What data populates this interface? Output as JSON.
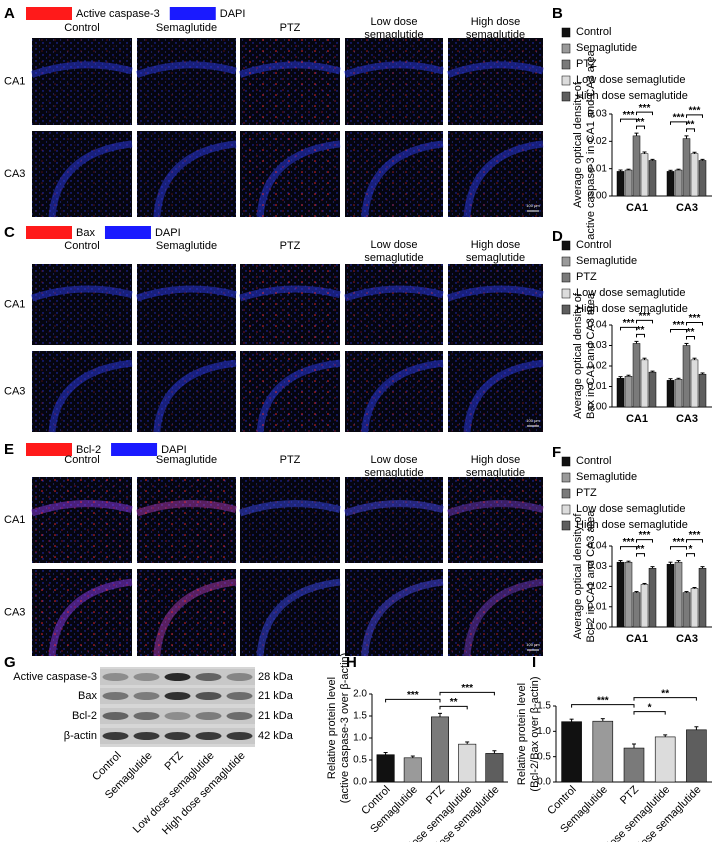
{
  "image_panels": [
    {
      "letter": "A",
      "legend": [
        "Active caspase-3",
        "DAPI"
      ],
      "columns": [
        [
          "Control"
        ],
        [
          "Semaglutide"
        ],
        [
          "PTZ"
        ],
        [
          "Low dose",
          "semaglutide"
        ],
        [
          "High dose",
          "semaglutide"
        ]
      ],
      "rows": [
        "CA1",
        "CA3"
      ],
      "scale_bar": "100 μm"
    },
    {
      "letter": "C",
      "legend": [
        "Bax",
        "DAPI"
      ],
      "columns": [
        [
          "Control"
        ],
        [
          "Semaglutide"
        ],
        [
          "PTZ"
        ],
        [
          "Low dose",
          "semaglutide"
        ],
        [
          "High dose",
          "semaglutide"
        ]
      ],
      "rows": [
        "CA1",
        "CA3"
      ],
      "scale_bar": "100 μm"
    },
    {
      "letter": "E",
      "legend": [
        "Bcl-2",
        "DAPI"
      ],
      "columns": [
        [
          "Control"
        ],
        [
          "Semaglutide"
        ],
        [
          "PTZ"
        ],
        [
          "Low dose",
          "semaglutide"
        ],
        [
          "High dose",
          "semaglutide"
        ]
      ],
      "rows": [
        "CA1",
        "CA3"
      ],
      "scale_bar": "100 μm"
    }
  ],
  "chart_data": [
    {
      "type": "grouped_bar",
      "letter": "B",
      "ylabel": [
        "Average optical density of",
        "active caspase-3 in CA1 and CA3 area"
      ],
      "categories": [
        "CA1",
        "CA3"
      ],
      "series": [
        {
          "name": "Control",
          "color": "#111111",
          "values": [
            0.009,
            0.009
          ],
          "errors": [
            0.0005,
            0.0004
          ]
        },
        {
          "name": "Semaglutide",
          "color": "#9a9a9a",
          "values": [
            0.0095,
            0.0095
          ],
          "errors": [
            0.0003,
            0.0003
          ]
        },
        {
          "name": "PTZ",
          "color": "#7a7a7a",
          "values": [
            0.022,
            0.021
          ],
          "errors": [
            0.001,
            0.001
          ]
        },
        {
          "name": "Low dose semaglutide",
          "color": "#dcdcdc",
          "values": [
            0.0155,
            0.0155
          ],
          "errors": [
            0.0006,
            0.0005
          ]
        },
        {
          "name": "High dose semaglutide",
          "color": "#5e5e5e",
          "values": [
            0.013,
            0.013
          ],
          "errors": [
            0.0004,
            0.0004
          ]
        }
      ],
      "ylim": [
        0,
        0.03
      ],
      "yticks": [
        {
          "value": 0,
          "label": "0.00"
        },
        0.01,
        0.02,
        0.03
      ],
      "significance": [
        [
          "***",
          "**",
          "***"
        ],
        [
          "***",
          "**",
          "***"
        ]
      ]
    },
    {
      "type": "grouped_bar",
      "letter": "D",
      "ylabel": [
        "Average optical density of",
        "Bax in CA1 and CA3 area"
      ],
      "categories": [
        "CA1",
        "CA3"
      ],
      "series": [
        {
          "name": "Control",
          "color": "#111111",
          "values": [
            0.014,
            0.013
          ],
          "errors": [
            0.0008,
            0.0008
          ]
        },
        {
          "name": "Semaglutide",
          "color": "#9a9a9a",
          "values": [
            0.015,
            0.0135
          ],
          "errors": [
            0.0005,
            0.0005
          ]
        },
        {
          "name": "PTZ",
          "color": "#7a7a7a",
          "values": [
            0.031,
            0.03
          ],
          "errors": [
            0.001,
            0.001
          ]
        },
        {
          "name": "Low dose semaglutide",
          "color": "#dcdcdc",
          "values": [
            0.023,
            0.023
          ],
          "errors": [
            0.0008,
            0.0008
          ]
        },
        {
          "name": "High dose semaglutide",
          "color": "#5e5e5e",
          "values": [
            0.017,
            0.016
          ],
          "errors": [
            0.0005,
            0.0006
          ]
        }
      ],
      "ylim": [
        0,
        0.04
      ],
      "yticks": [
        {
          "value": 0,
          "label": "0.00"
        },
        0.01,
        0.02,
        0.03,
        0.04
      ],
      "significance": [
        [
          "***",
          "**",
          "***"
        ],
        [
          "***",
          "**",
          "***"
        ]
      ]
    },
    {
      "type": "grouped_bar",
      "letter": "F",
      "ylabel": [
        "Average optical density of",
        "Bcl-2 in CA1 and CA3 area"
      ],
      "categories": [
        "CA1",
        "CA3"
      ],
      "series": [
        {
          "name": "Control",
          "color": "#111111",
          "values": [
            0.032,
            0.031
          ],
          "errors": [
            0.0008,
            0.001
          ]
        },
        {
          "name": "Semaglutide",
          "color": "#9a9a9a",
          "values": [
            0.032,
            0.032
          ],
          "errors": [
            0.0005,
            0.0008
          ]
        },
        {
          "name": "PTZ",
          "color": "#7a7a7a",
          "values": [
            0.017,
            0.017
          ],
          "errors": [
            0.0005,
            0.0005
          ]
        },
        {
          "name": "Low dose semaglutide",
          "color": "#dcdcdc",
          "values": [
            0.021,
            0.019
          ],
          "errors": [
            0.0005,
            0.0005
          ]
        },
        {
          "name": "High dose semaglutide",
          "color": "#5e5e5e",
          "values": [
            0.029,
            0.029
          ],
          "errors": [
            0.0008,
            0.0008
          ]
        }
      ],
      "ylim": [
        0,
        0.04
      ],
      "yticks": [
        {
          "value": 0,
          "label": "0.00"
        },
        0.01,
        0.02,
        0.03,
        0.04
      ],
      "significance": [
        [
          "***",
          "**",
          "***"
        ],
        [
          "***",
          "*",
          "***"
        ]
      ]
    },
    {
      "type": "bar",
      "letter": "H",
      "ylabel": [
        "Relative protein level",
        "(active caspase-3  over β-actin)"
      ],
      "categories": [
        "Control",
        "Semaglutide",
        "PTZ",
        "Low dose semaglutide",
        "High dose semaglutide"
      ],
      "values": [
        0.62,
        0.55,
        1.48,
        0.86,
        0.65
      ],
      "errors": [
        0.05,
        0.04,
        0.08,
        0.05,
        0.06
      ],
      "colors": [
        "#111111",
        "#9a9a9a",
        "#7a7a7a",
        "#dcdcdc",
        "#5e5e5e"
      ],
      "ylim": [
        0,
        2.0
      ],
      "yticks": [
        {
          "value": 0,
          "label": "0.0"
        },
        0.5,
        {
          "value": 1,
          "label": "1.0"
        },
        1.5,
        {
          "value": 2,
          "label": "2.0"
        }
      ],
      "significance": [
        "***",
        "**",
        "***"
      ]
    },
    {
      "type": "bar",
      "letter": "I",
      "ylabel": [
        "Relative protein level",
        "(Bcl-2/Bax over β-actin)"
      ],
      "categories": [
        "Control",
        "Semaglutide",
        "PTZ",
        "Low dose semaglutide",
        "High dose semaglutide"
      ],
      "values": [
        1.19,
        1.2,
        0.67,
        0.89,
        1.03
      ],
      "errors": [
        0.05,
        0.05,
        0.08,
        0.04,
        0.06
      ],
      "colors": [
        "#111111",
        "#9a9a9a",
        "#7a7a7a",
        "#dcdcdc",
        "#5e5e5e"
      ],
      "ylim": [
        0,
        1.5
      ],
      "yticks": [
        {
          "value": 0,
          "label": "0.0"
        },
        0.5,
        {
          "value": 1,
          "label": "1.0"
        },
        1.5
      ],
      "significance": [
        "***",
        "*",
        "**"
      ]
    }
  ],
  "blot": {
    "letter": "G",
    "proteins": [
      "Active caspase-3",
      "Bax",
      "Bcl-2",
      "β-actin"
    ],
    "sizes": [
      "28 kDa",
      "21 kDa",
      "21 kDa",
      "42 kDa"
    ],
    "lanes": [
      "Control",
      "Semaglutide",
      "PTZ",
      "Low dose semaglutide",
      "High dose semaglutide"
    ]
  }
}
